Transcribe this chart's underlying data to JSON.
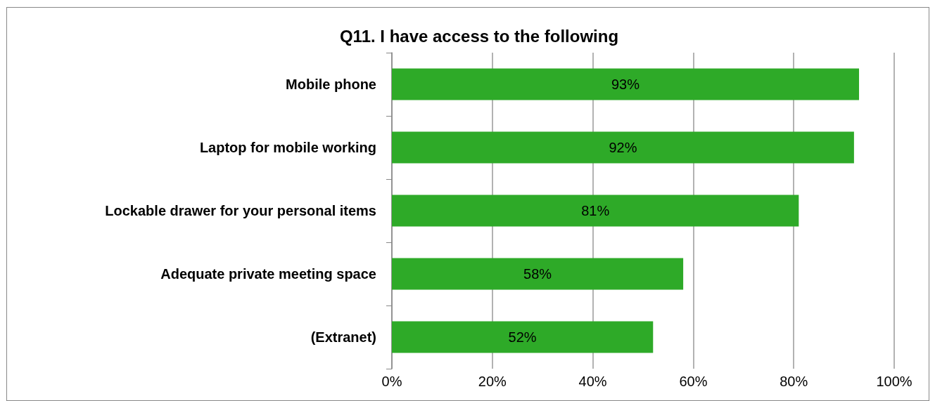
{
  "chart_data": {
    "type": "bar",
    "orientation": "horizontal",
    "title": "Q11. I have access to the following",
    "categories": [
      "Mobile phone",
      "Laptop for mobile working",
      "Lockable drawer for your personal items",
      "Adequate private meeting space",
      "(Extranet)"
    ],
    "values": [
      93,
      92,
      81,
      58,
      52
    ],
    "value_labels": [
      "93%",
      "92%",
      "81%",
      "58%",
      "52%"
    ],
    "color": "#2eaa28",
    "xlim": [
      0,
      100
    ],
    "xticks": [
      {
        "value": 0,
        "label": "0%"
      },
      {
        "value": 20,
        "label": "20%"
      },
      {
        "value": 40,
        "label": "40%"
      },
      {
        "value": 60,
        "label": "60%"
      },
      {
        "value": 80,
        "label": "80%"
      },
      {
        "value": 100,
        "label": "100%"
      }
    ],
    "grid": "x"
  }
}
